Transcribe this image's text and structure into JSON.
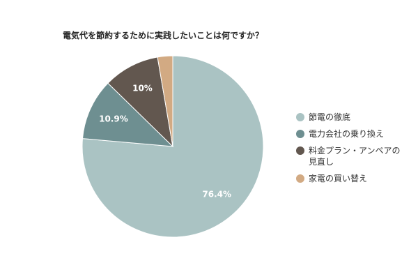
{
  "chart_data": {
    "type": "pie",
    "title": "電気代を節約するために実践したいことは何ですか？",
    "categories": [
      "節電の徹底",
      "電力会社の乗り換え",
      "料金プラン・アンペアの見直し",
      "家電の買い替え"
    ],
    "values": [
      76.4,
      10.9,
      10,
      2.7
    ],
    "value_labels": [
      "76.4%",
      "10.9%",
      "10%",
      null
    ],
    "colors": [
      "#aac3c3",
      "#6e8f91",
      "#62574f",
      "#d2aa83"
    ],
    "legend": "right"
  }
}
